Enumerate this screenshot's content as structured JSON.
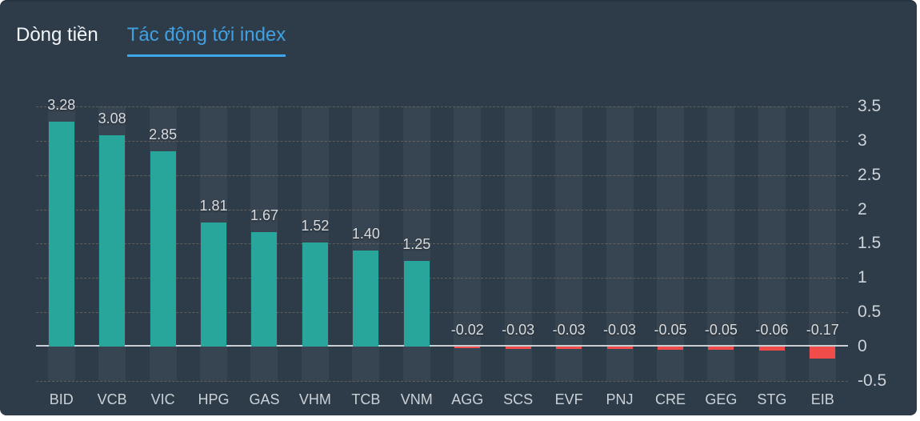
{
  "tabs": {
    "items": [
      {
        "label": "Dòng tiền",
        "active": false
      },
      {
        "label": "Tác động tới index",
        "active": true
      }
    ]
  },
  "chart_data": {
    "type": "bar",
    "title": "Tác động tới index",
    "categories": [
      "BID",
      "VCB",
      "VIC",
      "HPG",
      "GAS",
      "VHM",
      "TCB",
      "VNM",
      "AGG",
      "SCS",
      "EVF",
      "PNJ",
      "CRE",
      "GEG",
      "STG",
      "EIB"
    ],
    "values": [
      3.28,
      3.08,
      2.85,
      1.81,
      1.67,
      1.52,
      1.4,
      1.25,
      -0.02,
      -0.03,
      -0.03,
      -0.03,
      -0.05,
      -0.05,
      -0.06,
      -0.17
    ],
    "value_labels": [
      "3.28",
      "3.08",
      "2.85",
      "1.81",
      "1.67",
      "1.52",
      "1.40",
      "1.25",
      "-0.02",
      "-0.03",
      "-0.03",
      "-0.03",
      "-0.05",
      "-0.05",
      "-0.06",
      "-0.17"
    ],
    "y_ticks": [
      3.5,
      3,
      2.5,
      2,
      1.5,
      1,
      0.5,
      0,
      -0.5
    ],
    "y_tick_labels": [
      "3.5",
      "3",
      "2.5",
      "2",
      "1.5",
      "1",
      "0.5",
      "0",
      "-0.5"
    ],
    "ylim": [
      -0.5,
      3.5
    ],
    "xlabel": "",
    "ylabel": "",
    "legend": "none",
    "grid": "dashed-horizontal",
    "colors": {
      "positive_bar": "#29a69b",
      "negative_bar": "#ef4c4a",
      "background": "#2e3c4a",
      "column_band": "#36434f",
      "zero_line": "#c9cfd5",
      "gridline_dash": "#6d6350",
      "value_label_text": "#d9dcde",
      "category_label_text": "#cbd1d6",
      "axis_tick_text": "#ced3d8",
      "active_tab_text": "#41a0e0",
      "tab_underline": "#3ea7ec",
      "inactive_tab_text": "#f2f5f7"
    }
  }
}
